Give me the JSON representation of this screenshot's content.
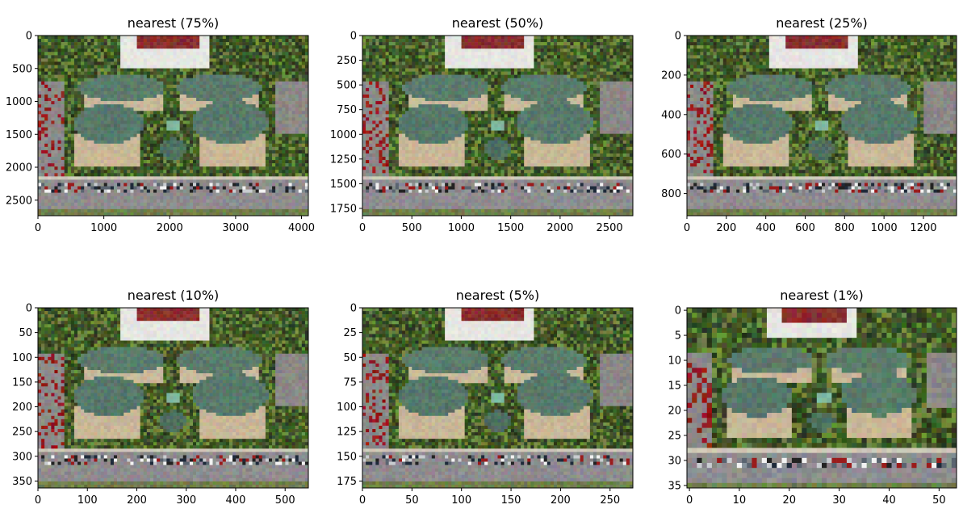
{
  "chart_data": [
    {
      "type": "image",
      "title": "nearest (75%)",
      "width": 4104,
      "height": 2736,
      "xlim": [
        0,
        4104
      ],
      "ylim": [
        2736,
        0
      ],
      "xticks": [
        0,
        1000,
        2000,
        3000,
        4000
      ],
      "yticks": [
        0,
        500,
        1000,
        1500,
        2000,
        2500
      ],
      "pixel_grid": [
        82,
        55
      ]
    },
    {
      "type": "image",
      "title": "nearest (50%)",
      "width": 2736,
      "height": 1824,
      "xlim": [
        0,
        2736
      ],
      "ylim": [
        1824,
        0
      ],
      "xticks": [
        0,
        500,
        1000,
        1500,
        2000,
        2500
      ],
      "yticks": [
        0,
        250,
        500,
        750,
        1000,
        1250,
        1500,
        1750
      ],
      "pixel_grid": [
        82,
        55
      ]
    },
    {
      "type": "image",
      "title": "nearest (25%)",
      "width": 1368,
      "height": 912,
      "xlim": [
        0,
        1368
      ],
      "ylim": [
        912,
        0
      ],
      "xticks": [
        0,
        200,
        400,
        600,
        800,
        1000,
        1200
      ],
      "yticks": [
        0,
        200,
        400,
        600,
        800
      ],
      "pixel_grid": [
        82,
        55
      ]
    },
    {
      "type": "image",
      "title": "nearest (10%)",
      "width": 547,
      "height": 364,
      "xlim": [
        0,
        547
      ],
      "ylim": [
        364,
        0
      ],
      "xticks": [
        0,
        100,
        200,
        300,
        400,
        500
      ],
      "yticks": [
        0,
        50,
        100,
        150,
        200,
        250,
        300,
        350
      ],
      "pixel_grid": [
        82,
        55
      ]
    },
    {
      "type": "image",
      "title": "nearest (5%)",
      "width": 273,
      "height": 182,
      "xlim": [
        0,
        273
      ],
      "ylim": [
        182,
        0
      ],
      "xticks": [
        0,
        50,
        100,
        150,
        200,
        250
      ],
      "yticks": [
        0,
        25,
        50,
        75,
        100,
        125,
        150,
        175
      ],
      "pixel_grid": [
        82,
        55
      ]
    },
    {
      "type": "image",
      "title": "nearest (1%)",
      "width": 54,
      "height": 36,
      "xlim": [
        -0.5,
        53.5
      ],
      "ylim": [
        35.5,
        -0.5
      ],
      "xticks": [
        0,
        10,
        20,
        30,
        40,
        50
      ],
      "yticks": [
        0,
        5,
        10,
        15,
        20,
        25,
        30,
        35
      ],
      "pixel_grid": [
        54,
        36
      ]
    }
  ]
}
